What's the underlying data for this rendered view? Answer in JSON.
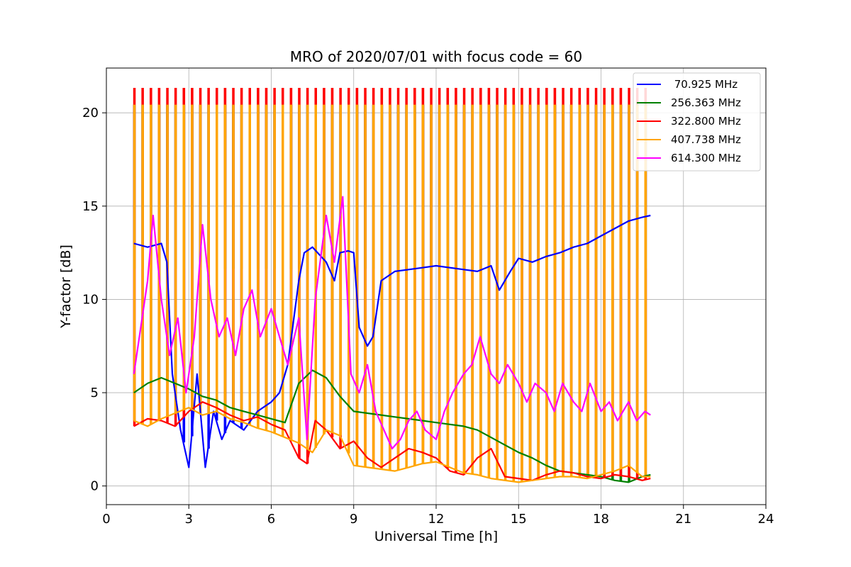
{
  "chart_data": {
    "type": "line",
    "title": "MRO of 2020/07/01 with focus code = 60",
    "xlabel": "Universal Time [h]",
    "ylabel": "Y-factor [dB]",
    "xlim": [
      0,
      24
    ],
    "ylim": [
      -1,
      22.4
    ],
    "xticks": [
      0,
      3,
      6,
      9,
      12,
      15,
      18,
      21,
      24
    ],
    "yticks": [
      0,
      5,
      10,
      15,
      20
    ],
    "xtick_labels": [
      "0",
      "3",
      "6",
      "9",
      "12",
      "15",
      "18",
      "21",
      "24"
    ],
    "ytick_labels": [
      "0",
      "5",
      "10",
      "15",
      "20"
    ],
    "grid": true,
    "legend_position": "top-right",
    "calibration_spikes": {
      "start": 1.0,
      "end": 19.8,
      "period": 0.3,
      "peak_levels": {
        "70.925 MHz": 20.4,
        "256.363 MHz": 20.4,
        "322.800 MHz": 21.3,
        "407.738 MHz": 20.4,
        "614.300 MHz": 11.6
      }
    },
    "series": [
      {
        "name": " 70.925 MHz",
        "color": "#0000ff",
        "x": [
          1.0,
          1.5,
          2.0,
          2.2,
          2.4,
          2.7,
          3.0,
          3.3,
          3.6,
          3.9,
          4.2,
          4.5,
          5.0,
          5.5,
          6.0,
          6.3,
          6.6,
          7.0,
          7.2,
          7.5,
          8.0,
          8.3,
          8.5,
          8.8,
          9.0,
          9.2,
          9.5,
          9.7,
          10.0,
          10.5,
          11.0,
          11.5,
          12.0,
          12.5,
          13.0,
          13.5,
          14.0,
          14.3,
          14.7,
          15.0,
          15.5,
          16.0,
          16.5,
          17.0,
          17.5,
          18.0,
          18.5,
          19.0,
          19.5,
          19.8
        ],
        "y": [
          13.0,
          12.8,
          13.0,
          12.0,
          6.0,
          3.0,
          1.0,
          6.0,
          1.0,
          4.0,
          2.5,
          3.5,
          3.0,
          4.0,
          4.5,
          5.0,
          6.5,
          11.0,
          12.5,
          12.8,
          12.0,
          11.0,
          12.5,
          12.6,
          12.5,
          8.5,
          7.5,
          8.0,
          11.0,
          11.5,
          11.6,
          11.7,
          11.8,
          11.7,
          11.6,
          11.5,
          11.8,
          10.5,
          11.5,
          12.2,
          12.0,
          12.3,
          12.5,
          12.8,
          13.0,
          13.4,
          13.8,
          14.2,
          14.4,
          14.5
        ]
      },
      {
        "name": "256.363 MHz",
        "color": "#008000",
        "x": [
          1.0,
          1.5,
          2.0,
          2.5,
          3.0,
          3.5,
          4.0,
          4.5,
          5.0,
          5.5,
          6.0,
          6.5,
          7.0,
          7.5,
          8.0,
          8.5,
          9.0,
          9.5,
          10.0,
          10.5,
          11.0,
          11.5,
          12.0,
          12.5,
          13.0,
          13.5,
          14.0,
          14.5,
          15.0,
          15.5,
          16.0,
          16.5,
          17.0,
          17.5,
          18.0,
          18.5,
          19.0,
          19.5,
          19.8
        ],
        "y": [
          5.0,
          5.5,
          5.8,
          5.5,
          5.2,
          4.8,
          4.6,
          4.2,
          4.0,
          3.8,
          3.6,
          3.4,
          5.5,
          6.2,
          5.8,
          4.8,
          4.0,
          3.9,
          3.8,
          3.7,
          3.6,
          3.5,
          3.4,
          3.3,
          3.2,
          3.0,
          2.6,
          2.2,
          1.8,
          1.5,
          1.1,
          0.8,
          0.7,
          0.6,
          0.5,
          0.3,
          0.2,
          0.5,
          0.6
        ]
      },
      {
        "name": "322.800 MHz",
        "color": "#ff0000",
        "x": [
          1.0,
          1.5,
          2.0,
          2.5,
          3.0,
          3.5,
          4.0,
          4.5,
          5.0,
          5.5,
          6.0,
          6.5,
          7.0,
          7.3,
          7.6,
          8.0,
          8.5,
          9.0,
          9.5,
          10.0,
          10.5,
          11.0,
          11.5,
          12.0,
          12.5,
          13.0,
          13.5,
          14.0,
          14.5,
          15.0,
          15.5,
          16.0,
          16.5,
          17.0,
          17.5,
          18.0,
          18.5,
          19.0,
          19.5,
          19.8
        ],
        "y": [
          3.2,
          3.6,
          3.5,
          3.2,
          4.0,
          4.5,
          4.2,
          3.8,
          3.5,
          3.7,
          3.3,
          3.0,
          1.5,
          1.2,
          3.5,
          3.0,
          2.0,
          2.4,
          1.5,
          1.0,
          1.5,
          2.0,
          1.8,
          1.5,
          0.8,
          0.6,
          1.5,
          2.0,
          0.5,
          0.4,
          0.3,
          0.6,
          0.8,
          0.7,
          0.5,
          0.4,
          0.6,
          0.5,
          0.3,
          0.4
        ]
      },
      {
        "name": "407.738 MHz",
        "color": "#ffa500",
        "x": [
          1.0,
          1.5,
          2.0,
          2.5,
          3.0,
          3.5,
          4.0,
          4.5,
          5.0,
          5.5,
          6.0,
          6.5,
          7.0,
          7.5,
          8.0,
          8.5,
          9.0,
          9.5,
          10.0,
          10.5,
          11.0,
          11.5,
          12.0,
          12.5,
          13.0,
          13.5,
          14.0,
          14.5,
          15.0,
          15.5,
          16.0,
          16.5,
          17.0,
          17.5,
          18.0,
          18.5,
          19.0,
          19.5,
          19.8
        ],
        "y": [
          3.5,
          3.2,
          3.6,
          3.9,
          4.2,
          3.8,
          4.0,
          3.6,
          3.4,
          3.1,
          2.9,
          2.6,
          2.3,
          1.8,
          3.0,
          2.7,
          1.1,
          1.0,
          0.9,
          0.8,
          1.0,
          1.2,
          1.3,
          1.0,
          0.7,
          0.6,
          0.4,
          0.3,
          0.2,
          0.3,
          0.4,
          0.5,
          0.5,
          0.4,
          0.6,
          0.8,
          1.1,
          0.5,
          0.5
        ]
      },
      {
        "name": "614.300 MHz",
        "color": "#ff00ff",
        "x": [
          1.0,
          1.3,
          1.5,
          1.7,
          2.0,
          2.3,
          2.6,
          2.9,
          3.2,
          3.5,
          3.8,
          4.1,
          4.4,
          4.7,
          5.0,
          5.3,
          5.6,
          6.0,
          6.3,
          6.6,
          7.0,
          7.3,
          7.6,
          8.0,
          8.3,
          8.6,
          8.9,
          9.2,
          9.5,
          9.8,
          10.1,
          10.4,
          10.7,
          11.0,
          11.3,
          11.6,
          12.0,
          12.3,
          12.6,
          13.0,
          13.3,
          13.6,
          14.0,
          14.3,
          14.6,
          15.0,
          15.3,
          15.6,
          16.0,
          16.3,
          16.6,
          17.0,
          17.3,
          17.6,
          18.0,
          18.3,
          18.6,
          19.0,
          19.3,
          19.6,
          19.8
        ],
        "y": [
          6.0,
          9.0,
          11.0,
          14.5,
          10.0,
          7.0,
          9.0,
          5.0,
          8.0,
          14.0,
          10.0,
          8.0,
          9.0,
          7.0,
          9.5,
          10.5,
          8.0,
          9.5,
          8.0,
          6.5,
          9.0,
          2.5,
          10.0,
          14.5,
          12.0,
          15.5,
          6.0,
          5.0,
          6.5,
          4.0,
          3.0,
          2.0,
          2.5,
          3.5,
          4.0,
          3.0,
          2.5,
          4.0,
          5.0,
          6.0,
          6.5,
          8.0,
          6.0,
          5.5,
          6.5,
          5.5,
          4.5,
          5.5,
          5.0,
          4.0,
          5.5,
          4.5,
          4.0,
          5.5,
          4.0,
          4.5,
          3.5,
          4.5,
          3.5,
          4.0,
          3.8
        ]
      }
    ]
  }
}
